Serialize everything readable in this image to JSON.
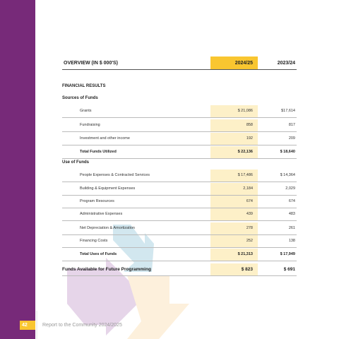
{
  "header": {
    "title": "OVERVIEW (IN $ 000'S)",
    "col1": "2024/25",
    "col2": "2023/24"
  },
  "section": "FINANCIAL RESULTS",
  "sources": {
    "title": "Sources of Funds",
    "rows": [
      [
        "Grants",
        "$ 21,086",
        "$17,614"
      ],
      [
        "Fundraising",
        "858",
        "817"
      ],
      [
        "Investment and other income",
        "192",
        "209"
      ]
    ],
    "total": [
      "Total Funds Utilized",
      "$ 22,136",
      "$ 18,640"
    ]
  },
  "uses": {
    "title": "Use of Funds",
    "rows": [
      [
        "People Expenses & Contracted Services",
        "$ 17,486",
        "$ 14,364"
      ],
      [
        "Building & Equipment Expenses",
        "2,184",
        "2,029"
      ],
      [
        "Program Resources",
        "674",
        "674"
      ],
      [
        "Administrative Expenses",
        "439",
        "483"
      ],
      [
        "Net Depreciation & Amortization",
        "278",
        "261"
      ],
      [
        "Financing Costs",
        "252",
        "138"
      ]
    ],
    "total": [
      "Total Uses of Funds",
      "$ 21,313",
      "$ 17,949"
    ]
  },
  "available": [
    "Funds Available for Future Programming",
    "$ 823",
    "$ 691"
  ],
  "footer": {
    "page": "42",
    "text": "Report to the Community 2024/2025"
  }
}
